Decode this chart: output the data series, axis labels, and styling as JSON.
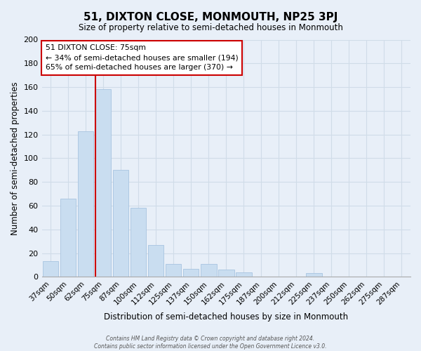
{
  "title": "51, DIXTON CLOSE, MONMOUTH, NP25 3PJ",
  "subtitle": "Size of property relative to semi-detached houses in Monmouth",
  "xlabel": "Distribution of semi-detached houses by size in Monmouth",
  "ylabel": "Number of semi-detached properties",
  "bar_labels": [
    "37sqm",
    "50sqm",
    "62sqm",
    "75sqm",
    "87sqm",
    "100sqm",
    "112sqm",
    "125sqm",
    "137sqm",
    "150sqm",
    "162sqm",
    "175sqm",
    "187sqm",
    "200sqm",
    "212sqm",
    "225sqm",
    "237sqm",
    "250sqm",
    "262sqm",
    "275sqm",
    "287sqm"
  ],
  "bar_values": [
    13,
    66,
    123,
    158,
    90,
    58,
    27,
    11,
    7,
    11,
    6,
    4,
    0,
    0,
    0,
    3,
    0,
    0,
    0,
    0,
    0
  ],
  "bar_color": "#c9ddf0",
  "bar_edge_color": "#a8c4e0",
  "vline_x": 3,
  "vline_color": "#cc0000",
  "ylim": [
    0,
    200
  ],
  "yticks": [
    0,
    20,
    40,
    60,
    80,
    100,
    120,
    140,
    160,
    180,
    200
  ],
  "annotation_title": "51 DIXTON CLOSE: 75sqm",
  "annotation_line1": "← 34% of semi-detached houses are smaller (194)",
  "annotation_line2": "65% of semi-detached houses are larger (370) →",
  "annotation_box_color": "white",
  "annotation_box_edge_color": "#cc0000",
  "footer_line1": "Contains HM Land Registry data © Crown copyright and database right 2024.",
  "footer_line2": "Contains public sector information licensed under the Open Government Licence v3.0.",
  "grid_color": "#d0dce8",
  "background_color": "#e8eff8"
}
